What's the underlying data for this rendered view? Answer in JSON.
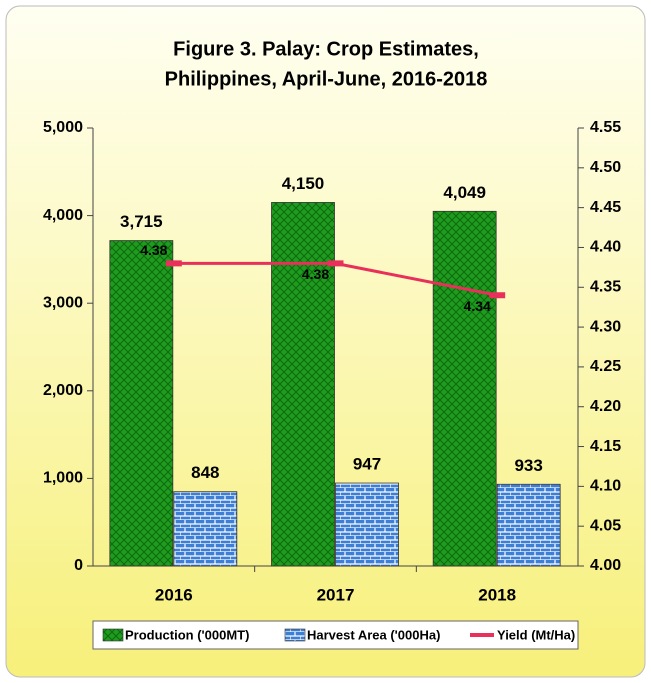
{
  "chart_data": {
    "type": "bar-line",
    "title": [
      "Figure 3. Palay: Crop Estimates,",
      "Philippines, April-June, 2016-2018"
    ],
    "categories": [
      "2016",
      "2017",
      "2018"
    ],
    "series": [
      {
        "name": "Production ('000MT)",
        "color": "#1f9b1f",
        "type": "bar",
        "values": [
          3715,
          4150,
          4049
        ],
        "value_labels": [
          "3,715",
          "4,150",
          "4,049"
        ]
      },
      {
        "name": "Harvest Area ('000Ha)",
        "color": "#3d7fd6",
        "type": "bar",
        "values": [
          848,
          947,
          933
        ]
      },
      {
        "name": "Yield (Mt/Ha)",
        "color": "#e8305a",
        "type": "line",
        "axis": "y2",
        "values": [
          4.38,
          4.38,
          4.34
        ]
      }
    ],
    "ylim": [
      0,
      5000
    ],
    "yticks": [
      0,
      {
        "value": 1000,
        "label": "1,000"
      },
      {
        "value": 2000,
        "label": "2,000"
      },
      {
        "value": 3000,
        "label": "3,000"
      },
      {
        "value": 4000,
        "label": "4,000"
      },
      {
        "value": 5000,
        "label": "5,000"
      }
    ],
    "y2lim": [
      4.0,
      4.55
    ],
    "y2ticks": [
      {
        "value": 4.0,
        "label": "4.00"
      },
      4.05,
      {
        "value": 4.1,
        "label": "4.10"
      },
      4.15,
      {
        "value": 4.2,
        "label": "4.20"
      },
      4.25,
      {
        "value": 4.3,
        "label": "4.30"
      },
      4.35,
      {
        "value": 4.4,
        "label": "4.40"
      },
      4.45,
      {
        "value": 4.5,
        "label": "4.50"
      },
      4.55
    ],
    "legend": "bottom"
  }
}
